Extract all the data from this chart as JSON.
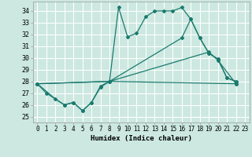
{
  "xlabel": "Humidex (Indice chaleur)",
  "bg_color": "#cce8e0",
  "grid_color": "#ffffff",
  "line_color": "#1a7a6e",
  "xlim": [
    -0.5,
    23.5
  ],
  "ylim": [
    24.5,
    34.8
  ],
  "yticks": [
    25,
    26,
    27,
    28,
    29,
    30,
    31,
    32,
    33,
    34
  ],
  "xticks": [
    0,
    1,
    2,
    3,
    4,
    5,
    6,
    7,
    8,
    9,
    10,
    11,
    12,
    13,
    14,
    15,
    16,
    17,
    18,
    19,
    20,
    21,
    22,
    23
  ],
  "lines": [
    {
      "x": [
        0,
        1,
        3,
        4,
        5,
        6,
        7,
        8,
        9,
        10,
        11,
        12,
        13,
        14,
        15,
        16,
        17,
        18,
        19,
        20,
        21,
        22
      ],
      "y": [
        27.8,
        27.0,
        26.0,
        26.2,
        25.5,
        26.2,
        27.6,
        28.0,
        34.3,
        31.8,
        32.1,
        33.5,
        34.0,
        34.0,
        34.0,
        34.3,
        33.3,
        31.7,
        30.4,
        29.9,
        28.3,
        28.0
      ]
    },
    {
      "comment": "second line - goes 0->8 then 8->16->20->22",
      "x": [
        0,
        2,
        3,
        4,
        5,
        6,
        7,
        8,
        16,
        17,
        18,
        19,
        20,
        21,
        22
      ],
      "y": [
        27.8,
        26.5,
        26.0,
        26.2,
        25.5,
        26.2,
        27.5,
        28.0,
        31.7,
        33.3,
        31.7,
        30.4,
        29.9,
        28.3,
        28.0
      ]
    },
    {
      "x": [
        0,
        8,
        19,
        20,
        22
      ],
      "y": [
        27.8,
        28.0,
        30.5,
        29.8,
        27.8
      ]
    },
    {
      "x": [
        0,
        8,
        22
      ],
      "y": [
        27.8,
        28.0,
        27.8
      ]
    }
  ]
}
